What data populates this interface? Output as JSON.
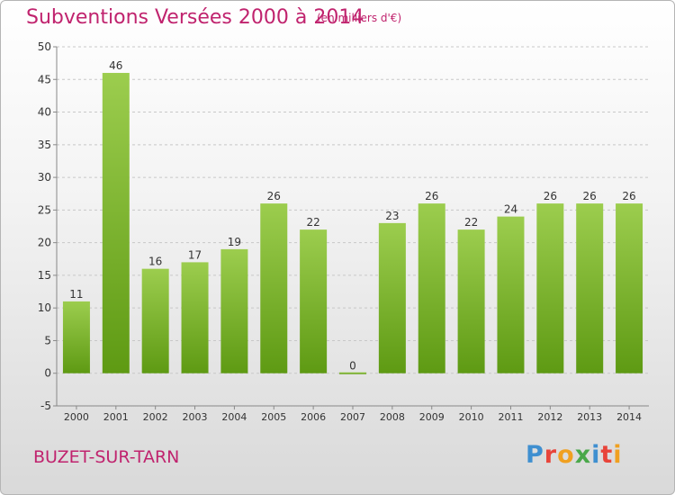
{
  "header": {
    "title": "Subventions Versées 2000 à 2014",
    "unit": "(en milliers d'€)"
  },
  "footer": {
    "place": "BUZET-SUR-TARN",
    "logo_letters": [
      {
        "char": "P",
        "color": "#3f8fd0"
      },
      {
        "char": "r",
        "color": "#e8443a"
      },
      {
        "char": "o",
        "color": "#f0a020"
      },
      {
        "char": "x",
        "color": "#4aa84a"
      },
      {
        "char": "i",
        "color": "#3f8fd0"
      },
      {
        "char": "t",
        "color": "#e8443a"
      },
      {
        "char": "i",
        "color": "#f0a020"
      }
    ]
  },
  "colors": {
    "title": "#c0236e",
    "bar_light": "#9ccd4e",
    "bar_dark": "#5e9a13",
    "axis_text": "#333333",
    "grid": "#c8c8c8"
  },
  "chart_data": {
    "type": "bar",
    "title": "Subventions Versées 2000 à 2014",
    "subtitle": "(en milliers d'€)",
    "categories": [
      "2000",
      "2001",
      "2002",
      "2003",
      "2004",
      "2005",
      "2006",
      "2007",
      "2008",
      "2009",
      "2010",
      "2011",
      "2012",
      "2013",
      "2014"
    ],
    "values": [
      11,
      46,
      16,
      17,
      19,
      26,
      22,
      0,
      23,
      26,
      22,
      24,
      26,
      26,
      26
    ],
    "ylim": [
      -5,
      50
    ],
    "yticks": [
      -5,
      0,
      5,
      10,
      15,
      20,
      25,
      30,
      35,
      40,
      45,
      50
    ],
    "grid": true,
    "data_labels": true
  }
}
